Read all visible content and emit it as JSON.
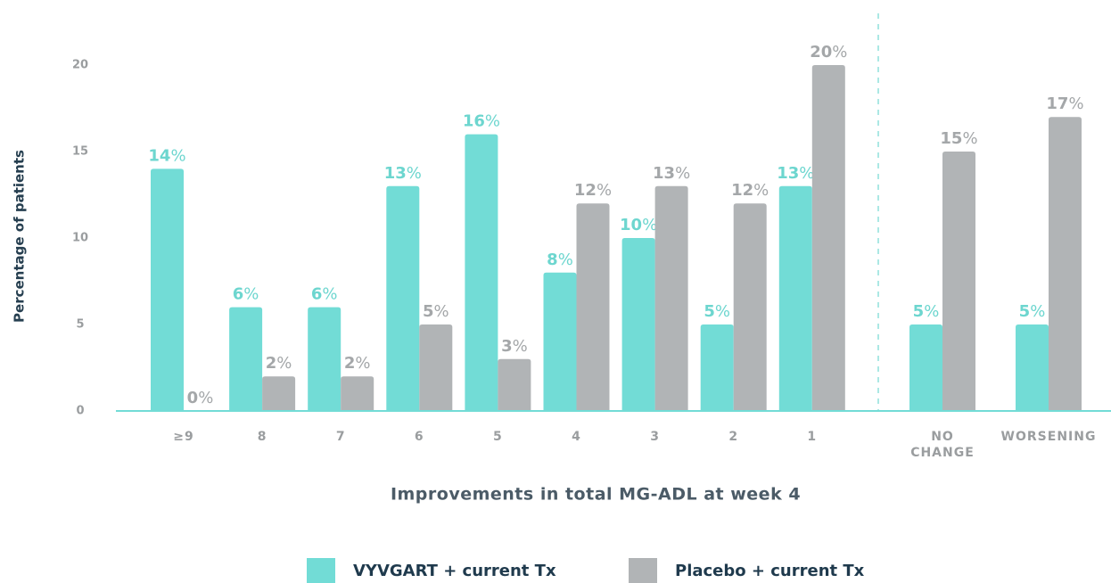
{
  "chart_data": {
    "type": "bar",
    "y_label": "Percentage of patients",
    "x_label": "Improvements in total MG-ADL at week 4",
    "categories": [
      "≥9",
      "8",
      "7",
      "6",
      "5",
      "4",
      "3",
      "2",
      "1",
      "NO CHANGE",
      "WORSENING"
    ],
    "series": [
      {
        "name": "VYVGART + current Tx",
        "color": "#72dcd6",
        "label_color": "#6dd6cf",
        "values": [
          14,
          6,
          6,
          13,
          16,
          8,
          10,
          5,
          13,
          5,
          5
        ],
        "value_labels": [
          "14%",
          "6%",
          "6%",
          "13%",
          "16%",
          "8%",
          "10%",
          "5%",
          "13%",
          "5%",
          "5%"
        ]
      },
      {
        "name": "Placebo + current Tx",
        "color": "#b1b4b6",
        "label_color": "#a4a7a9",
        "values": [
          0,
          2,
          2,
          5,
          3,
          12,
          13,
          12,
          20,
          15,
          17
        ],
        "value_labels": [
          "0%",
          "2%",
          "2%",
          "5%",
          "3%",
          "12%",
          "13%",
          "12%",
          "20%",
          "15%",
          "17%"
        ]
      }
    ],
    "ylim": [
      0,
      20
    ],
    "yticks": [
      0,
      5,
      10,
      15,
      20
    ],
    "grid": false
  }
}
